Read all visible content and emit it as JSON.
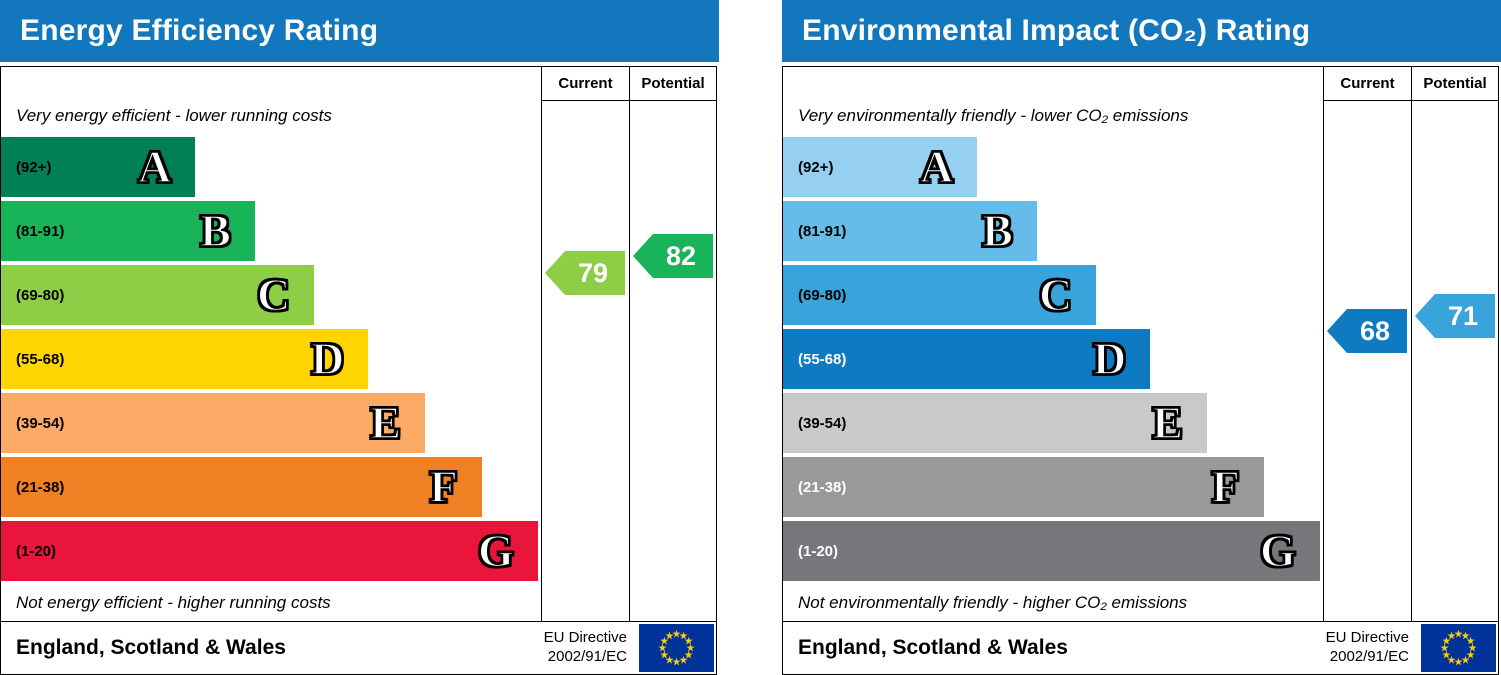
{
  "theme": {
    "header_bg": "#1277bd",
    "header_text": "#ffffff",
    "flag_bg": "#003399",
    "flag_stars": "#ffcc00"
  },
  "chart_data": [
    {
      "type": "bar",
      "title": "Energy Efficiency Rating",
      "columns": {
        "current": "Current",
        "potential": "Potential"
      },
      "top_caption": "Very energy efficient - lower running costs",
      "bottom_caption": "Not energy efficient - higher running costs",
      "bands": [
        {
          "letter": "A",
          "range_label": "(92+)",
          "lo": 92,
          "hi": 100,
          "color": "#008054",
          "width_pct": 36,
          "label_color": "#000000"
        },
        {
          "letter": "B",
          "range_label": "(81-91)",
          "lo": 81,
          "hi": 91,
          "color": "#19b459",
          "width_pct": 47,
          "label_color": "#000000"
        },
        {
          "letter": "C",
          "range_label": "(69-80)",
          "lo": 69,
          "hi": 80,
          "color": "#8dce46",
          "width_pct": 58,
          "label_color": "#000000"
        },
        {
          "letter": "D",
          "range_label": "(55-68)",
          "lo": 55,
          "hi": 68,
          "color": "#ffd500",
          "width_pct": 68,
          "label_color": "#000000"
        },
        {
          "letter": "E",
          "range_label": "(39-54)",
          "lo": 39,
          "hi": 54,
          "color": "#fcaa65",
          "width_pct": 78.5,
          "label_color": "#000000"
        },
        {
          "letter": "F",
          "range_label": "(21-38)",
          "lo": 21,
          "hi": 38,
          "color": "#ef8023",
          "width_pct": 89,
          "label_color": "#000000"
        },
        {
          "letter": "G",
          "range_label": "(1-20)",
          "lo": 1,
          "hi": 20,
          "color": "#e9153b",
          "width_pct": 99.4,
          "label_color": "#000000"
        }
      ],
      "current": {
        "value": 79,
        "color": "#8dce46"
      },
      "potential": {
        "value": 82,
        "color": "#19b459"
      },
      "footer": {
        "region": "England, Scotland & Wales",
        "directive_line1": "EU Directive",
        "directive_line2": "2002/91/EC"
      }
    },
    {
      "type": "bar",
      "title": "Environmental Impact (CO₂) Rating",
      "columns": {
        "current": "Current",
        "potential": "Potential"
      },
      "top_caption": "Very environmentally friendly - lower CO₂ emissions",
      "bottom_caption": "Not environmentally friendly - higher CO₂ emissions",
      "bands": [
        {
          "letter": "A",
          "range_label": "(92+)",
          "lo": 92,
          "hi": 100,
          "color": "#96d0f0",
          "width_pct": 36,
          "label_color": "#000000"
        },
        {
          "letter": "B",
          "range_label": "(81-91)",
          "lo": 81,
          "hi": 91,
          "color": "#65bce8",
          "width_pct": 47,
          "label_color": "#000000"
        },
        {
          "letter": "C",
          "range_label": "(69-80)",
          "lo": 69,
          "hi": 80,
          "color": "#39a3db",
          "width_pct": 58,
          "label_color": "#000000"
        },
        {
          "letter": "D",
          "range_label": "(55-68)",
          "lo": 55,
          "hi": 68,
          "color": "#0e7ac1",
          "width_pct": 68,
          "label_color": "#ffffff"
        },
        {
          "letter": "E",
          "range_label": "(39-54)",
          "lo": 39,
          "hi": 54,
          "color": "#c8c9cb",
          "width_pct": 78.5,
          "label_color": "#000000"
        },
        {
          "letter": "F",
          "range_label": "(21-38)",
          "lo": 21,
          "hi": 38,
          "color": "#97999b",
          "width_pct": 89,
          "label_color": "#ffffff"
        },
        {
          "letter": "G",
          "range_label": "(1-20)",
          "lo": 1,
          "hi": 20,
          "color": "#75777b",
          "width_pct": 99.4,
          "label_color": "#ffffff"
        }
      ],
      "current": {
        "value": 68,
        "color": "#0e7ac1"
      },
      "potential": {
        "value": 71,
        "color": "#39a3db"
      },
      "footer": {
        "region": "England, Scotland & Wales",
        "directive_line1": "EU Directive",
        "directive_line2": "2002/91/EC"
      }
    }
  ]
}
